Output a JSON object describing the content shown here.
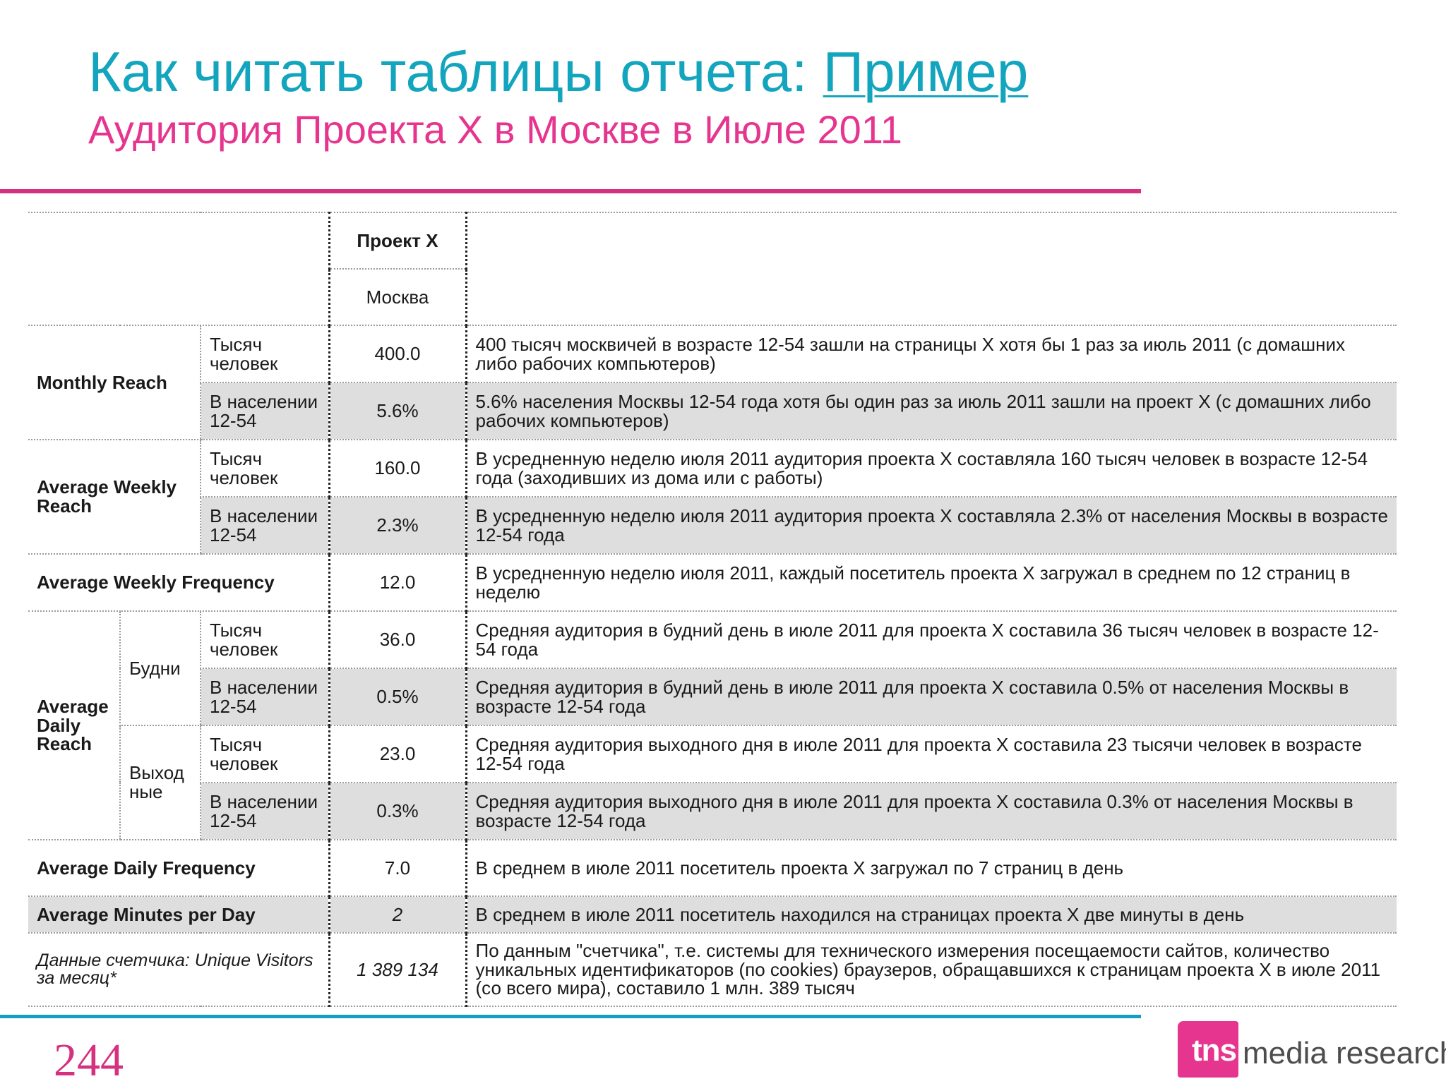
{
  "title": {
    "prefix": "Как читать таблицы отчета: ",
    "link": "Пример"
  },
  "subtitle": "Аудитория Проекта X в Москве в Июле 2011",
  "table": {
    "header": {
      "project": "Проект X",
      "city": "Москва"
    },
    "units": {
      "thousands": "Тысяч человек",
      "population": "В населении 12-54"
    },
    "monthly_reach": {
      "label": "Monthly Reach",
      "thousands_value": "400.0",
      "thousands_desc": "400 тысяч москвичей в возрасте 12-54 зашли на страницы X хотя бы 1 раз за июль 2011 (с домашних либо рабочих компьютеров)",
      "pop_value": "5.6%",
      "pop_desc": "5.6% населения Москвы 12-54 года хотя бы один раз за июль 2011 зашли на проект X (с домашних либо рабочих компьютеров)"
    },
    "weekly_reach": {
      "label": "Average Weekly Reach",
      "thousands_value": "160.0",
      "thousands_desc": "В усредненную неделю июля 2011 аудитория проекта X составляла 160 тысяч человек в возрасте 12-54 года (заходивших из дома или с работы)",
      "pop_value": "2.3%",
      "pop_desc": "В усредненную неделю июля 2011 аудитория проекта X составляла 2.3% от населения Москвы в возрасте 12-54 года"
    },
    "weekly_frequency": {
      "label": "Average Weekly Frequency",
      "value": "12.0",
      "desc": "В усредненную неделю июля 2011, каждый посетитель проекта X загружал в среднем по 12 страниц  в неделю"
    },
    "daily_reach": {
      "label": "Average Daily Reach",
      "weekdays": {
        "label": "Будни",
        "thousands_value": "36.0",
        "thousands_desc": "Средняя аудитория в будний день в июле 2011 для проекта X составила 36 тысяч человек в возрасте 12-54 года",
        "pop_value": "0.5%",
        "pop_desc": "Средняя аудитория в будний день в июле 2011 для проекта X составила  0.5% от населения Москвы в возрасте 12-54 года"
      },
      "weekends": {
        "label": "Выход ные",
        "thousands_value": "23.0",
        "thousands_desc": "Средняя аудитория выходного дня в июле 2011 для проекта X составила 23 тысячи человек в возрасте 12-54 года",
        "pop_value": "0.3%",
        "pop_desc": "Средняя аудитория выходного дня в июле 2011 для проекта X составила  0.3% от населения Москвы в возрасте 12-54 года"
      }
    },
    "daily_frequency": {
      "label": "Average Daily Frequency",
      "value": "7.0",
      "desc": "В среднем в июле 2011 посетитель проекта X загружал по 7 страниц в день"
    },
    "minutes_per_day": {
      "label": "Average Minutes per Day",
      "value": "2",
      "desc": "В среднем в июле 2011 посетитель находился на страницах проекта X две минуты в день"
    },
    "counter": {
      "label": "Данные счетчика: Unique Visitors за месяц*",
      "value": "1 389 134",
      "desc": "По данным \"счетчика\", т.е. системы для технического измерения посещаемости сайтов, количество уникальных идентификаторов (по cookies) браузеров, обращавшихся к страницам проекта X в июле 2011 (со всего мира), составило 1 млн. 389 тысяч"
    }
  },
  "footer": {
    "page_number": "244",
    "logo_mark": "tns",
    "logo_text": "media research"
  },
  "colors": {
    "title": "#12a5bd",
    "subtitle": "#e6358e",
    "top_rule": "#d6317f",
    "bottom_rule": "#159ec4",
    "row_shade": "#dededf"
  }
}
